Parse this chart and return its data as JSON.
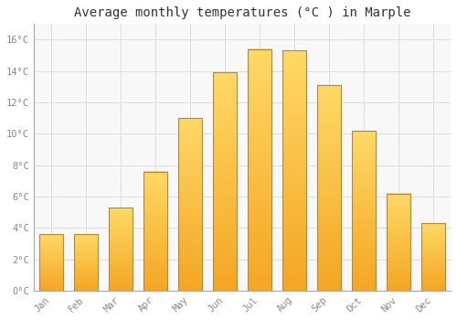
{
  "title": "Average monthly temperatures (°C ) in Marple",
  "months": [
    "Jan",
    "Feb",
    "Mar",
    "Apr",
    "May",
    "Jun",
    "Jul",
    "Aug",
    "Sep",
    "Oct",
    "Nov",
    "Dec"
  ],
  "values": [
    3.6,
    3.6,
    5.3,
    7.6,
    11.0,
    13.9,
    15.4,
    15.3,
    13.1,
    10.2,
    6.2,
    4.3
  ],
  "bar_color_bottom": "#F5A623",
  "bar_color_top": "#FFD966",
  "bar_edge_color": "#C8860A",
  "background_color": "#FFFFFF",
  "plot_bg_color": "#F8F8F8",
  "grid_color": "#DDDDDD",
  "ylim": [
    0,
    17
  ],
  "yticks": [
    0,
    2,
    4,
    6,
    8,
    10,
    12,
    14,
    16
  ],
  "ytick_labels": [
    "0°C",
    "2°C",
    "4°C",
    "6°C",
    "8°C",
    "10°C",
    "12°C",
    "14°C",
    "16°C"
  ],
  "title_fontsize": 10,
  "tick_fontsize": 7.5,
  "tick_color": "#888888",
  "font_family": "monospace"
}
